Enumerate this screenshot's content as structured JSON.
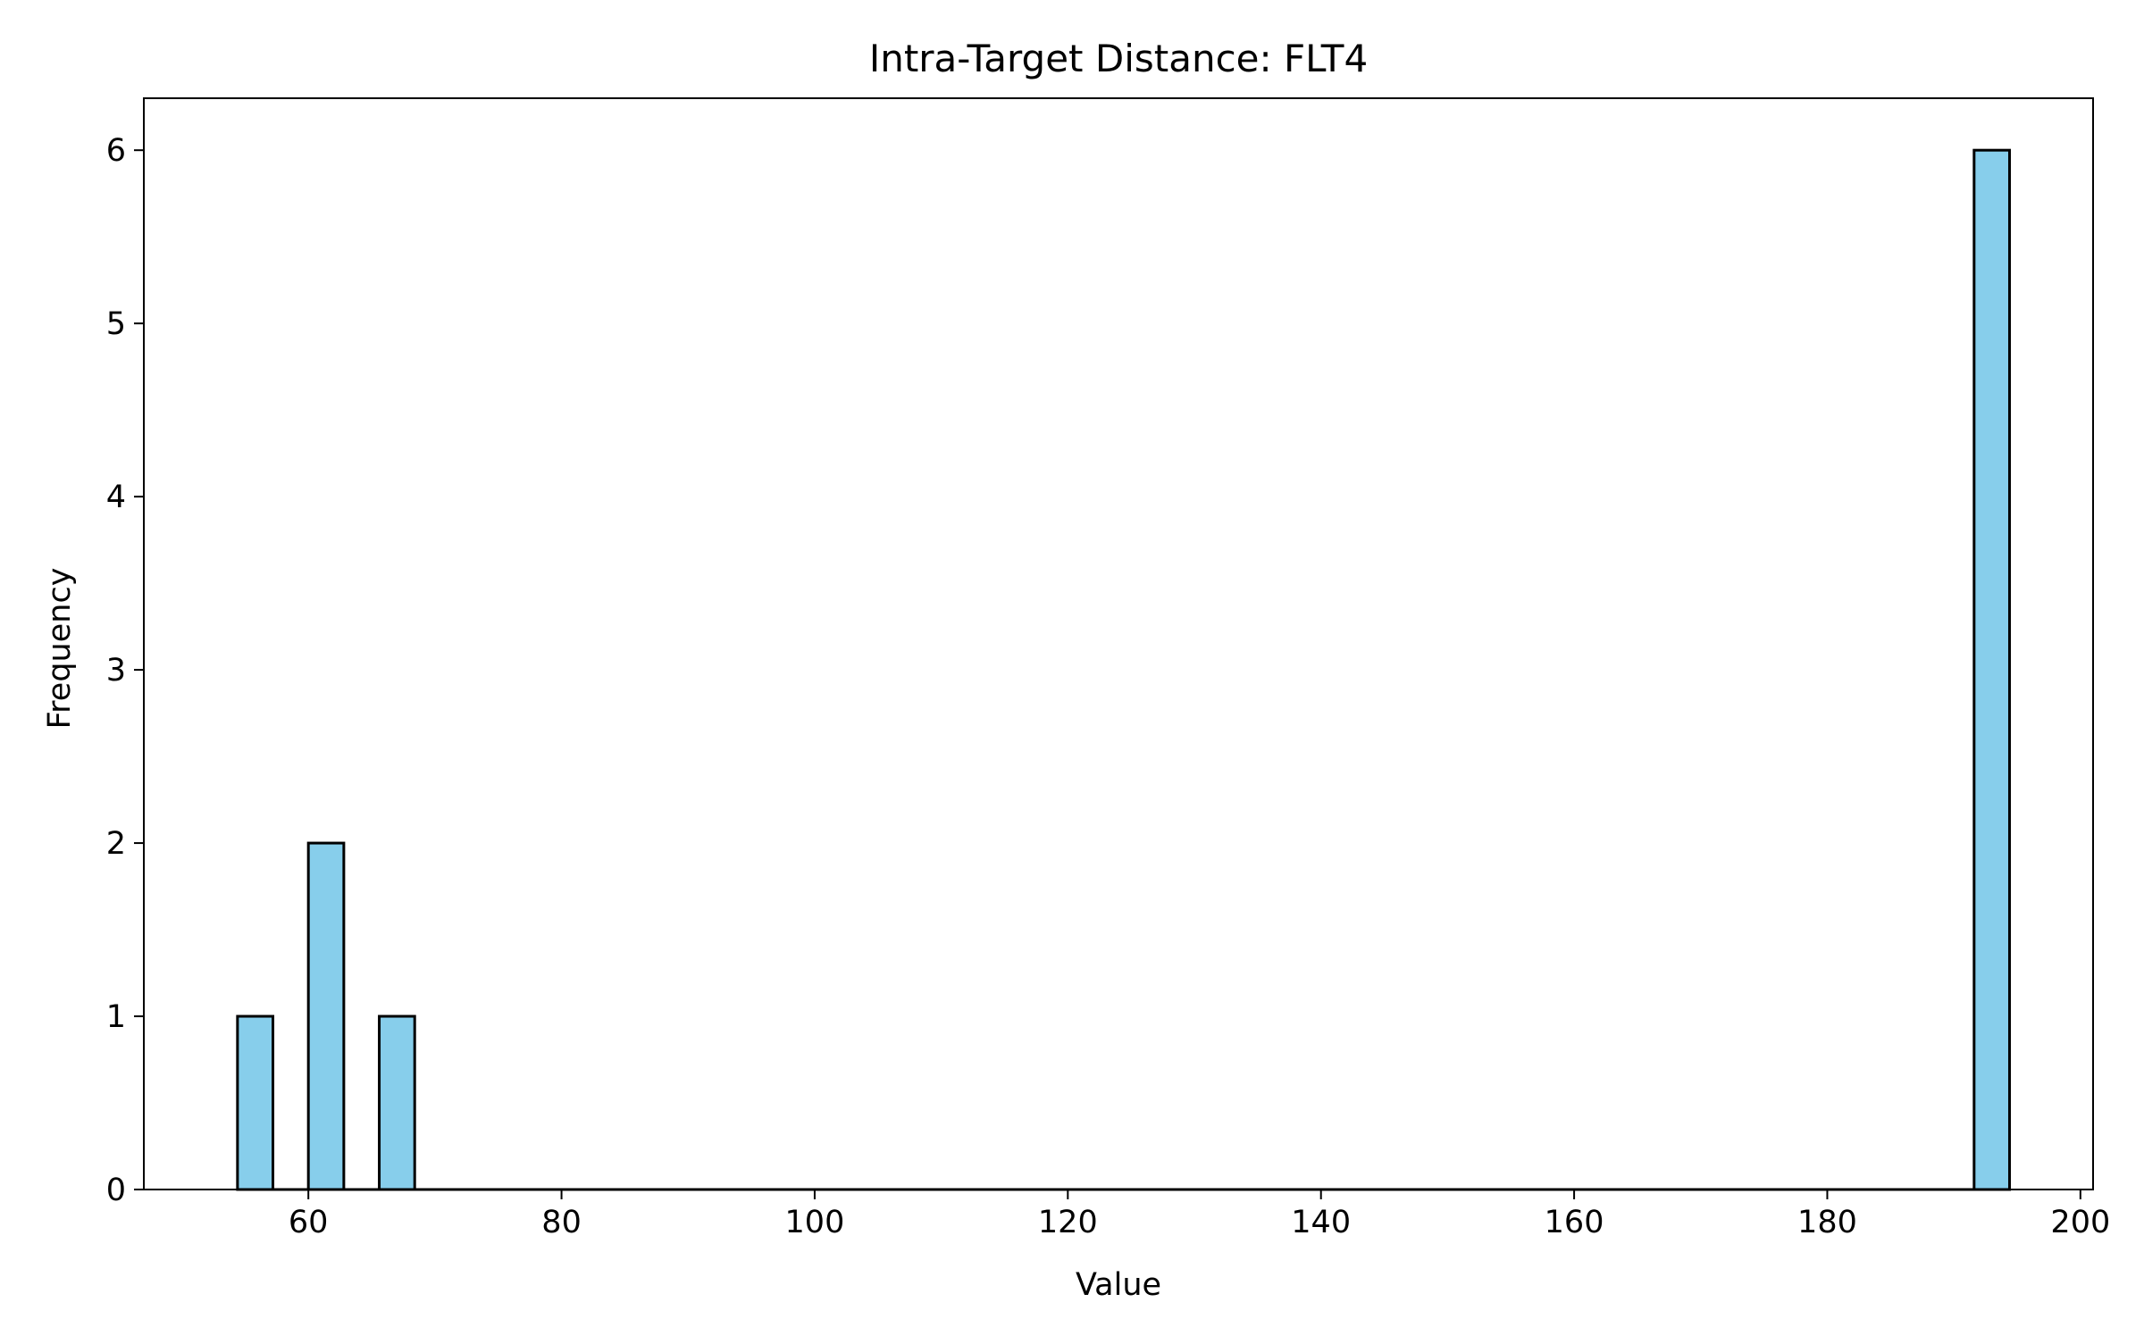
{
  "chart_data": {
    "type": "bar",
    "title": "Intra-Target Distance: FLT4",
    "xlabel": "Value",
    "ylabel": "Frequency",
    "xlim": [
      47,
      201
    ],
    "ylim": [
      0,
      6.3
    ],
    "xticks": [
      60,
      80,
      100,
      120,
      140,
      160,
      180,
      200
    ],
    "yticks": [
      0,
      1,
      2,
      3,
      4,
      5,
      6
    ],
    "bin_width": 2.8,
    "bins": [
      {
        "start": 54.4,
        "count": 1
      },
      {
        "start": 57.2,
        "count": 0
      },
      {
        "start": 60.0,
        "count": 2
      },
      {
        "start": 62.8,
        "count": 0
      },
      {
        "start": 65.6,
        "count": 1
      },
      {
        "start": 68.4,
        "count": 0
      },
      {
        "start": 191.6,
        "count": 6
      }
    ],
    "grid": false,
    "bar_color": "#87ceeb",
    "edge_color": "#000000"
  }
}
